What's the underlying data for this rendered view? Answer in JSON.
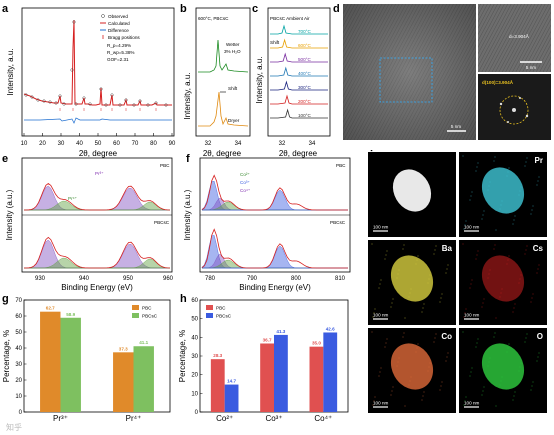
{
  "panel_labels": {
    "a": "a",
    "b": "b",
    "c": "c",
    "d": "d",
    "e": "e",
    "f": "f",
    "g": "g",
    "h": "h",
    "i": "i"
  },
  "panel_a": {
    "ylabel": "Intensity, a.u.",
    "xlabel": "2θ, degree",
    "x_ticks": [
      "10",
      "20",
      "30",
      "40",
      "50",
      "60",
      "70",
      "80",
      "90"
    ],
    "legend": [
      "Observed",
      "Calculated",
      "Difference",
      "Bragg positions"
    ],
    "stats": [
      "R_p=4.29%",
      "R_wp=5.38%",
      "GOF=2.31"
    ]
  },
  "panel_b": {
    "header": "600°C, PBCsC",
    "labels": [
      "Wetter",
      "3% H₂O",
      "Shift",
      "Dryer"
    ],
    "x_ticks": [
      "32",
      "34"
    ],
    "xlabel": "2θ, degree",
    "ylabel": "Intensity, a.u."
  },
  "panel_c": {
    "header": "PBCsC  Ambient Air",
    "shift_label": "Shift",
    "temps": [
      "700°C",
      "600°C",
      "500°C",
      "400°C",
      "300°C",
      "200°C",
      "100°C"
    ],
    "temp_colors": [
      "#00a3a3",
      "#e8a000",
      "#7a2ea0",
      "#1f77b4",
      "#1a237e",
      "#d32020",
      "#333333"
    ],
    "x_ticks": [
      "32",
      "34"
    ],
    "xlabel": "2θ, degree",
    "ylabel": "Intensity, a.u."
  },
  "panel_d": {
    "scale_left": "5 nm",
    "scale_right": "5 nm",
    "d_spacing": "d=3.904Å",
    "fft_label": "d(100)=3.904Å"
  },
  "panel_e": {
    "ylabel": "Intensity (a.u.)",
    "xlabel": "Binding Energy (eV)",
    "x_ticks": [
      "930",
      "940",
      "950",
      "960"
    ],
    "top_label": "PBC",
    "bottom_label": "PBCsC",
    "species": [
      "Pr³⁺",
      "Pr⁴⁺"
    ]
  },
  "panel_f": {
    "ylabel": "Intensity (a.u.)",
    "xlabel": "Binding Energy (eV)",
    "x_ticks": [
      "780",
      "790",
      "800",
      "810"
    ],
    "top_label": "PBC",
    "bottom_label": "PBCsC",
    "species": [
      "Co²⁺",
      "Co³⁺",
      "Co⁴⁺"
    ]
  },
  "panel_i": {
    "elements": [
      "",
      "Pr",
      "Ba",
      "Cs",
      "Co",
      "O"
    ],
    "scale_bar": "100 nm",
    "colors": [
      "#ffffff",
      "#40c8d8",
      "#d8d040",
      "#d02020",
      "#e06a3a",
      "#30d040"
    ]
  },
  "chart_data": [
    {
      "id": "g",
      "type": "bar",
      "ylabel": "Percentage, %",
      "categories": [
        "Pr³⁺",
        "Pr⁴⁺"
      ],
      "ylim": [
        0,
        70
      ],
      "yticks": [
        0,
        10,
        20,
        30,
        40,
        50,
        60,
        70
      ],
      "legend_position": "top-right",
      "series": [
        {
          "name": "PBC",
          "values": [
            62.7,
            37.3
          ],
          "color": "#e08a2a"
        },
        {
          "name": "PBCsC",
          "values": [
            58.9,
            41.1
          ],
          "color": "#7ec060"
        }
      ],
      "value_labels": [
        [
          "62.7",
          "37.3"
        ],
        [
          "58.9",
          "41.1"
        ]
      ]
    },
    {
      "id": "h",
      "type": "bar",
      "ylabel": "Percentage, %",
      "categories": [
        "Co²⁺",
        "Co³⁺",
        "Co⁴⁺"
      ],
      "ylim": [
        0,
        60
      ],
      "yticks": [
        0,
        10,
        20,
        30,
        40,
        50,
        60
      ],
      "legend_position": "top-left",
      "series": [
        {
          "name": "PBC",
          "values": [
            28.3,
            36.7,
            35.0
          ],
          "color": "#e05050"
        },
        {
          "name": "PBCsC",
          "values": [
            14.7,
            41.3,
            42.6
          ],
          "color": "#3a5be0"
        }
      ],
      "value_labels": [
        [
          "28.3",
          "36.7",
          "35.0"
        ],
        [
          "14.7",
          "41.3",
          "42.6"
        ]
      ]
    }
  ],
  "watermark": "知乎"
}
